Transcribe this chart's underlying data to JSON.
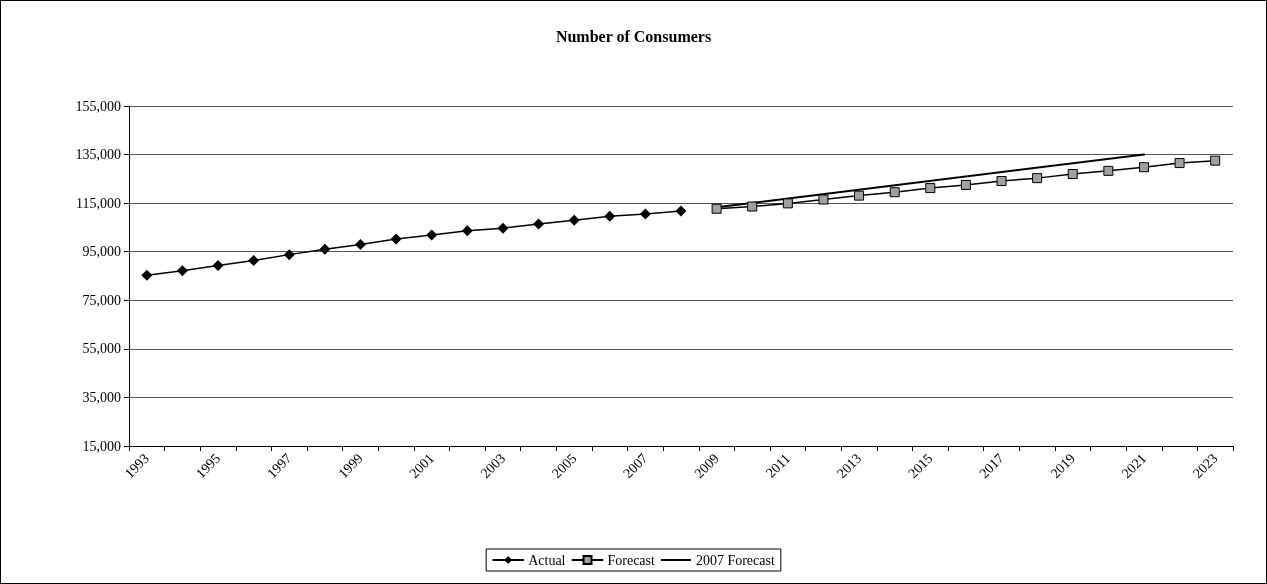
{
  "chart_data": {
    "type": "line",
    "title": "Number of Consumers",
    "categories": [
      "1993",
      null,
      "1995",
      null,
      "1997",
      null,
      "1999",
      null,
      "2001",
      null,
      "2003",
      null,
      "2005",
      null,
      "2007",
      null,
      "2009",
      null,
      "2011",
      null,
      "2013",
      null,
      "2015",
      null,
      "2017",
      null,
      "2019",
      null,
      "2021",
      null,
      "2023"
    ],
    "series": [
      {
        "name": "Actual",
        "color": "#000000",
        "marker": "diamond",
        "values": [
          85300,
          87200,
          89300,
          91400,
          93800,
          96000,
          98000,
          100200,
          101900,
          103600,
          104700,
          106400,
          108000,
          109600,
          110500,
          111800,
          null,
          null,
          null,
          null,
          null,
          null,
          null,
          null,
          null,
          null,
          null,
          null,
          null,
          null,
          null
        ]
      },
      {
        "name": "Forecast",
        "color": "#a0a0a0",
        "marker": "square",
        "values": [
          null,
          null,
          null,
          null,
          null,
          null,
          null,
          null,
          null,
          null,
          null,
          null,
          null,
          null,
          null,
          null,
          112700,
          113600,
          114900,
          116500,
          118100,
          119500,
          121200,
          122500,
          124100,
          125300,
          127000,
          128300,
          129800,
          131500,
          132500
        ]
      },
      {
        "name": "2007 Forecast",
        "color": "#000000",
        "marker": "none",
        "values": [
          null,
          null,
          null,
          null,
          null,
          null,
          null,
          null,
          null,
          null,
          null,
          null,
          null,
          null,
          null,
          null,
          113300,
          null,
          null,
          null,
          null,
          null,
          null,
          null,
          null,
          null,
          null,
          null,
          135000,
          null,
          null
        ]
      }
    ],
    "ylim": [
      15000,
      155000
    ],
    "yticks": [
      {
        "value": 15000,
        "label": "15,000"
      },
      {
        "value": 35000,
        "label": "35,000"
      },
      {
        "value": 55000,
        "label": "55,000"
      },
      {
        "value": 75000,
        "label": "75,000"
      },
      {
        "value": 95000,
        "label": "95,000"
      },
      {
        "value": 115000,
        "label": "115,000"
      },
      {
        "value": 135000,
        "label": "135,000"
      },
      {
        "value": 155000,
        "label": "155,000"
      }
    ],
    "grid": "y",
    "legend": "bottom"
  }
}
